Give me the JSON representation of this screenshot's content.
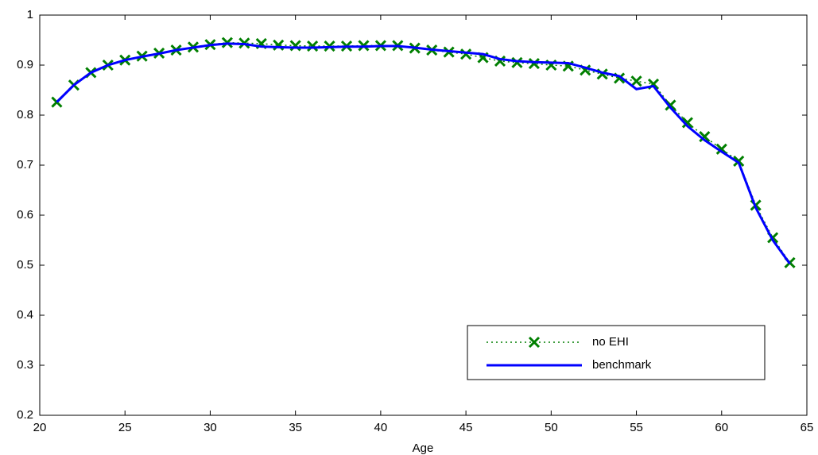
{
  "chart_data": {
    "type": "line",
    "x_label": "Age",
    "x": [
      21,
      22,
      23,
      24,
      25,
      26,
      27,
      28,
      29,
      30,
      31,
      32,
      33,
      34,
      35,
      36,
      37,
      38,
      39,
      40,
      41,
      42,
      43,
      44,
      45,
      46,
      47,
      48,
      49,
      50,
      51,
      52,
      53,
      54,
      55,
      56,
      57,
      58,
      59,
      60,
      61,
      62,
      63,
      64
    ],
    "series": [
      {
        "name": "no EHI",
        "color": "#007f00",
        "line_style": "dotted",
        "marker": "x",
        "values": [
          0.826,
          0.86,
          0.885,
          0.9,
          0.91,
          0.918,
          0.924,
          0.93,
          0.936,
          0.941,
          0.945,
          0.944,
          0.943,
          0.94,
          0.939,
          0.938,
          0.938,
          0.938,
          0.939,
          0.939,
          0.939,
          0.934,
          0.93,
          0.926,
          0.922,
          0.915,
          0.908,
          0.905,
          0.903,
          0.9,
          0.898,
          0.89,
          0.882,
          0.874,
          0.868,
          0.862,
          0.82,
          0.785,
          0.757,
          0.732,
          0.708,
          0.62,
          0.555,
          0.505
        ]
      },
      {
        "name": "benchmark",
        "color": "#0000ff",
        "line_style": "solid",
        "marker": "none",
        "values": [
          0.826,
          0.86,
          0.885,
          0.9,
          0.91,
          0.917,
          0.923,
          0.93,
          0.935,
          0.94,
          0.943,
          0.942,
          0.937,
          0.936,
          0.935,
          0.935,
          0.936,
          0.937,
          0.937,
          0.938,
          0.938,
          0.935,
          0.931,
          0.928,
          0.925,
          0.922,
          0.912,
          0.908,
          0.906,
          0.905,
          0.904,
          0.895,
          0.885,
          0.878,
          0.852,
          0.858,
          0.815,
          0.778,
          0.75,
          0.727,
          0.705,
          0.615,
          0.55,
          0.503
        ]
      }
    ],
    "xlim": [
      20,
      65
    ],
    "xticks": [
      20,
      25,
      30,
      35,
      40,
      45,
      50,
      55,
      60,
      65
    ],
    "ylim": [
      0.2,
      1
    ],
    "yticks": [
      0.2,
      0.3,
      0.4,
      0.5,
      0.6,
      0.7,
      0.8,
      0.9,
      1
    ],
    "grid": false,
    "legend_position": "lower right"
  }
}
